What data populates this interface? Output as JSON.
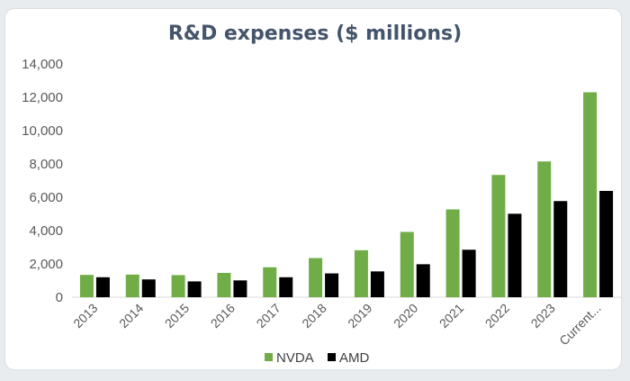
{
  "chart_data": {
    "type": "bar",
    "title": "R&D expenses ($ millions)",
    "categories": [
      "2013",
      "2014",
      "2015",
      "2016",
      "2017",
      "2018",
      "2019",
      "2020",
      "2021",
      "2022",
      "2023",
      "Current..."
    ],
    "series": [
      {
        "name": "NVDA",
        "color": "#70ad47",
        "values": [
          1340,
          1360,
          1330,
          1460,
          1800,
          2350,
          2820,
          3920,
          5270,
          7340,
          8150,
          12300
        ]
      },
      {
        "name": "AMD",
        "color": "#000000",
        "values": [
          1200,
          1070,
          950,
          1010,
          1200,
          1430,
          1550,
          1980,
          2850,
          5010,
          5770,
          6380
        ]
      }
    ],
    "y_ticks": [
      "0",
      "2,000",
      "4,000",
      "6,000",
      "8,000",
      "10,000",
      "12,000",
      "14,000"
    ],
    "ylim": [
      0,
      14000
    ],
    "grid": false,
    "legend": "bottom"
  }
}
